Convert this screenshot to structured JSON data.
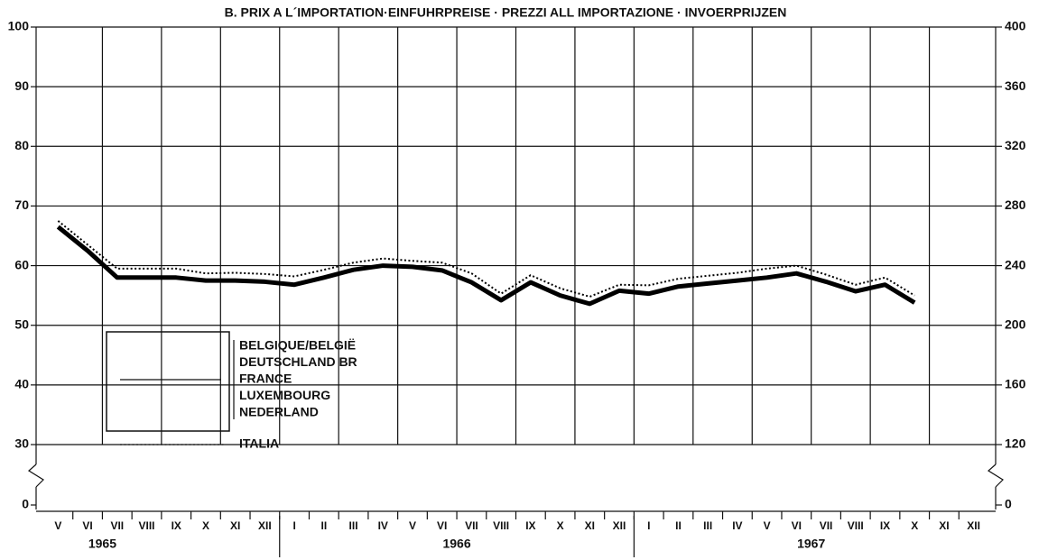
{
  "chart_data": {
    "type": "line",
    "title": "B. PRIX A L´IMPORTATION·EINFUHRPREISE · PREZZI ALL IMPORTAZIONE · INVOERPRIJZEN",
    "categories": [
      "V",
      "VI",
      "VII",
      "VIII",
      "IX",
      "X",
      "XI",
      "XII",
      "I",
      "II",
      "III",
      "IV",
      "V",
      "VI",
      "VII",
      "VIII",
      "IX",
      "X",
      "XI",
      "XII",
      "I",
      "II",
      "III",
      "IV",
      "V",
      "VI",
      "VII",
      "VIII",
      "IX",
      "X",
      "XI",
      "XII"
    ],
    "years": [
      {
        "label": "1965",
        "span": [
          0,
          7
        ]
      },
      {
        "label": "1966",
        "span": [
          8,
          19
        ]
      },
      {
        "label": "1967",
        "span": [
          20,
          31
        ]
      }
    ],
    "ylim": [
      0,
      100
    ],
    "yticks": [
      0,
      30,
      40,
      50,
      60,
      70,
      80,
      90,
      100
    ],
    "y2lim": [
      0,
      400
    ],
    "y2ticks": [
      0,
      120,
      160,
      200,
      240,
      280,
      320,
      360,
      400
    ],
    "axis_break": true,
    "grid": true,
    "series": [
      {
        "name": [
          "BELGIQUE/BELGIË",
          "DEUTSCHLAND BR",
          "FRANCE",
          "LUXEMBOURG",
          "NEDERLAND"
        ],
        "color": "#000000",
        "style": "solid",
        "values": [
          66.5,
          62.5,
          58,
          58,
          58,
          57.5,
          57.5,
          57.3,
          56.8,
          58,
          59.3,
          60,
          59.8,
          59.2,
          57.2,
          54.2,
          57.2,
          55,
          53.6,
          55.8,
          55.3,
          56.5,
          57,
          57.5,
          58,
          58.7,
          57.3,
          55.7,
          56.8,
          53.8,
          null,
          null
        ]
      },
      {
        "name": "ITALIA",
        "color": "#000000",
        "style": "dotted",
        "values": [
          67.5,
          63.5,
          59.5,
          59.5,
          59.5,
          58.7,
          58.8,
          58.6,
          58.2,
          59.3,
          60.5,
          61.2,
          60.8,
          60.5,
          58.7,
          55.3,
          58.4,
          56.2,
          54.8,
          56.8,
          56.7,
          57.8,
          58.3,
          58.8,
          59.5,
          60,
          58.5,
          56.8,
          58,
          55,
          null,
          null
        ]
      }
    ]
  }
}
